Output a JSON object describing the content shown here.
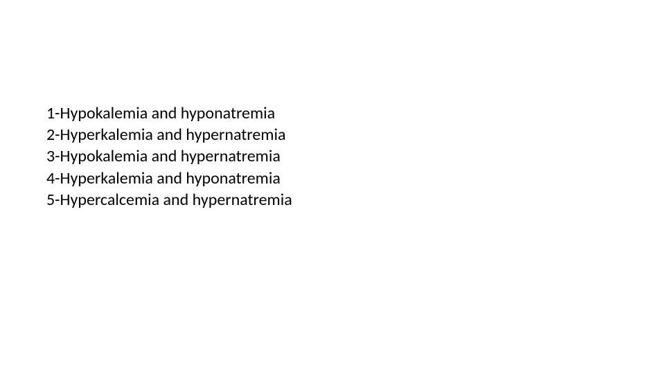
{
  "list": {
    "items": [
      "1-Hypokalemia and hyponatremia",
      "2-Hyperkalemia and hypernatremia",
      "3-Hypokalemia and hypernatremia",
      "4-Hyperkalemia and hyponatremia",
      "5-Hypercalcemia and hypernatremia"
    ],
    "font_size": 24,
    "text_color": "#000000",
    "background_color": "#ffffff",
    "line_height": 1.3
  }
}
